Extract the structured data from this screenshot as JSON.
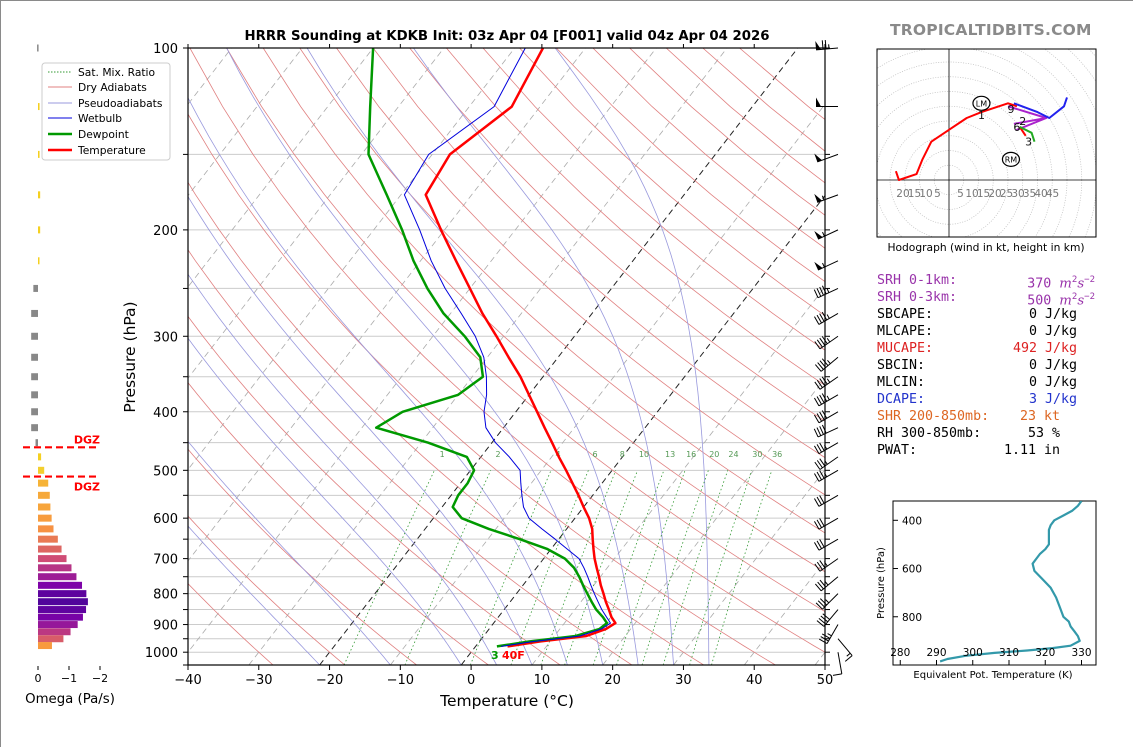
{
  "brand": "TROPICALTIDBITS.COM",
  "chart_data": [
    {
      "type": "line",
      "name": "skew-t",
      "title": "HRRR Sounding at KDKB Init: 03z Apr 04 [F001] valid 04z Apr 04 2026",
      "xlabel": "Temperature (°C)",
      "ylabel": "Pressure (hPa)",
      "xlim": [
        -40,
        50
      ],
      "ylim": [
        1050,
        100
      ],
      "xticks": [
        "−40",
        "−30",
        "−20",
        "−10",
        "0",
        "10",
        "20",
        "30",
        "40",
        "50"
      ],
      "yticks": [
        "100",
        "200",
        "300",
        "400",
        "500",
        "600",
        "700",
        "800",
        "900",
        "1000"
      ],
      "legend": {
        "placement": "top-left",
        "entries": [
          "Sat. Mix. Ratio",
          "Dry Adiabats",
          "Pseudoadiabats",
          "Wetbulb",
          "Dewpoint",
          "Temperature"
        ]
      },
      "mixing_ratio_labels": [
        "1",
        "2",
        "4",
        "6",
        "8",
        "10",
        "13",
        "16",
        "20",
        "24",
        "30",
        "36"
      ],
      "surface_labels": {
        "dewpoint": "3",
        "temperature": "40F"
      },
      "colors": {
        "temperature": "#ff0000",
        "dewpoint": "#009900",
        "wetbulb": "#0000dd",
        "dry": "#e08080",
        "moist": "#9999dd",
        "mix": "#339933"
      },
      "series": [
        {
          "name": "Temperature",
          "p": [
            978,
            960,
            940,
            915,
            895,
            875,
            850,
            825,
            800,
            775,
            750,
            725,
            700,
            675,
            650,
            625,
            600,
            575,
            550,
            525,
            500,
            475,
            450,
            425,
            400,
            375,
            350,
            325,
            300,
            275,
            250,
            225,
            200,
            175,
            150,
            125,
            100
          ],
          "t": [
            4.5,
            8.5,
            14.5,
            16.5,
            17.2,
            16.0,
            14.8,
            13.5,
            12.3,
            11.0,
            9.8,
            8.5,
            7.2,
            6.0,
            4.8,
            3.6,
            2.0,
            0.0,
            -2.0,
            -4.2,
            -6.5,
            -9.0,
            -11.5,
            -14.2,
            -17.0,
            -20.0,
            -23.2,
            -27.0,
            -31.0,
            -35.5,
            -40.0,
            -45.0,
            -50.5,
            -56.5,
            -57.5,
            -54.0,
            -56.0
          ]
        },
        {
          "name": "Dewpoint",
          "p": [
            978,
            960,
            940,
            915,
            895,
            875,
            850,
            825,
            800,
            775,
            750,
            725,
            700,
            675,
            650,
            625,
            600,
            575,
            550,
            525,
            500,
            475,
            450,
            425,
            400,
            375,
            350,
            325,
            300,
            275,
            250,
            225,
            200,
            175,
            150,
            125,
            100
          ],
          "t": [
            3.0,
            7.0,
            13.0,
            15.6,
            16.0,
            14.8,
            13.0,
            11.5,
            10.0,
            8.5,
            7.0,
            5.3,
            3.0,
            -0.5,
            -5.5,
            -11.0,
            -16.0,
            -18.5,
            -19.0,
            -19.0,
            -19.5,
            -22.0,
            -29.0,
            -38.0,
            -36.0,
            -30.0,
            -28.5,
            -31.0,
            -35.5,
            -41.0,
            -46.0,
            -51.0,
            -56.0,
            -62.0,
            -69.0,
            -74.0,
            -80.0
          ]
        },
        {
          "name": "Wetbulb",
          "p": [
            978,
            960,
            940,
            915,
            895,
            875,
            850,
            825,
            800,
            775,
            750,
            725,
            700,
            675,
            650,
            625,
            600,
            575,
            550,
            525,
            500,
            475,
            450,
            425,
            400,
            375,
            350,
            325,
            300,
            275,
            250,
            225,
            200,
            175,
            150,
            125,
            100
          ],
          "t": [
            3.6,
            7.6,
            13.6,
            15.9,
            16.5,
            15.3,
            13.8,
            12.4,
            11.0,
            9.6,
            8.2,
            6.7,
            5.0,
            2.3,
            -0.5,
            -3.5,
            -6.5,
            -8.5,
            -10.0,
            -11.5,
            -13.0,
            -16.0,
            -19.5,
            -22.5,
            -24.5,
            -26.0,
            -28.0,
            -30.5,
            -34.0,
            -38.5,
            -43.5,
            -48.5,
            -53.5,
            -59.5,
            -60.5,
            -56.5,
            -58.5
          ]
        }
      ],
      "wind_barbs": {
        "p": [
          100,
          125,
          150,
          175,
          200,
          225,
          250,
          275,
          300,
          325,
          350,
          375,
          400,
          425,
          450,
          475,
          500,
          550,
          600,
          650,
          700,
          750,
          800,
          850,
          900,
          950,
          1000
        ],
        "speed_kt": [
          75,
          50,
          50,
          55,
          55,
          55,
          45,
          45,
          45,
          45,
          45,
          45,
          40,
          40,
          35,
          35,
          35,
          30,
          30,
          30,
          35,
          35,
          35,
          40,
          35,
          15,
          10
        ],
        "direction_deg": [
          265,
          270,
          250,
          250,
          245,
          245,
          245,
          240,
          235,
          230,
          235,
          240,
          240,
          245,
          240,
          235,
          240,
          240,
          240,
          240,
          235,
          230,
          225,
          220,
          210,
          140,
          170
        ]
      }
    },
    {
      "type": "bar",
      "name": "omega",
      "xlabel": "Omega (Pa/s)",
      "xticks": [
        "0",
        "−1",
        "−2"
      ],
      "dgz_label": "DGZ",
      "dgz_p": [
        458,
        512
      ],
      "p": [
        100,
        125,
        150,
        175,
        200,
        225,
        250,
        275,
        300,
        325,
        350,
        375,
        400,
        425,
        450,
        475,
        500,
        525,
        550,
        575,
        600,
        625,
        650,
        675,
        700,
        725,
        750,
        775,
        800,
        825,
        850,
        875,
        900,
        925,
        950,
        975
      ],
      "omega": [
        0.03,
        -0.05,
        -0.05,
        -0.07,
        -0.07,
        -0.01,
        0.15,
        0.22,
        0.22,
        0.22,
        0.22,
        0.22,
        0.22,
        0.22,
        0.08,
        -0.1,
        -0.2,
        -0.33,
        -0.38,
        -0.4,
        -0.44,
        -0.5,
        -0.64,
        -0.76,
        -0.92,
        -1.08,
        -1.24,
        -1.42,
        -1.56,
        -1.61,
        -1.55,
        -1.45,
        -1.28,
        -1.05,
        -0.82,
        -0.45
      ],
      "bar_colors_note": "gray for positive, plasma colormap by magnitude for negative"
    },
    {
      "type": "line",
      "name": "hodograph",
      "xlabel": "Hodograph (wind in kt, height in km)",
      "ring_labels": [
        "20",
        "15",
        "10",
        "5",
        "5",
        "10",
        "15",
        "20",
        "25",
        "30",
        "35",
        "40",
        "45"
      ],
      "storm_motion_labels": [
        "LM",
        "RM"
      ],
      "lm": [
        5.5,
        13
      ],
      "rm": [
        10.5,
        3.5
      ],
      "height_labels": [
        {
          "text": "1",
          "u": 5.5,
          "v": 11
        },
        {
          "text": "2",
          "u": 12.5,
          "v": 10
        },
        {
          "text": "3",
          "u": 13.5,
          "v": 6.5
        },
        {
          "text": "6",
          "u": 11.5,
          "v": 9
        },
        {
          "text": "9",
          "u": 10.5,
          "v": 12
        }
      ],
      "segments": [
        {
          "color": "#ff0000",
          "points": [
            [
              -9,
              1.5
            ],
            [
              -8.5,
              0
            ],
            [
              -5.5,
              1
            ],
            [
              -4.5,
              3.5
            ],
            [
              -3,
              6.5
            ],
            [
              0,
              8.5
            ],
            [
              3,
              10.5
            ],
            [
              5.5,
              11.5
            ],
            [
              10,
              13
            ],
            [
              11.5,
              12.5
            ]
          ]
        },
        {
          "color": "#aa22cc",
          "points": [
            [
              10,
              12.5
            ],
            [
              16.5,
              10.5
            ],
            [
              11.5,
              8.5
            ],
            [
              16.5,
              10.5
            ],
            [
              11,
              9.5
            ]
          ]
        },
        {
          "color": "#ff0000",
          "points": [
            [
              12,
              9
            ],
            [
              13,
              7.5
            ]
          ]
        },
        {
          "color": "#22aa22",
          "points": [
            [
              12,
              9
            ],
            [
              14,
              8
            ],
            [
              14.5,
              6.5
            ]
          ]
        },
        {
          "color": "#2222ee",
          "points": [
            [
              11,
              13
            ],
            [
              15,
              11.5
            ],
            [
              17,
              10.5
            ],
            [
              19.5,
              12.5
            ],
            [
              20,
              14
            ]
          ]
        }
      ]
    },
    {
      "type": "line",
      "name": "theta-e",
      "xlabel": "Equivalent Pot. Temperature (K)",
      "ylabel": "Pressure (hPa)",
      "xticks": [
        "280",
        "290",
        "300",
        "310",
        "320",
        "330"
      ],
      "yticks": [
        "400",
        "600",
        "800"
      ],
      "xlim": [
        278,
        334
      ],
      "ylim": [
        1000,
        320
      ],
      "p": [
        985,
        975,
        962,
        950,
        940,
        930,
        920,
        900,
        880,
        860,
        840,
        820,
        800,
        760,
        720,
        680,
        640,
        610,
        580,
        560,
        540,
        520,
        500,
        480,
        460,
        440,
        420,
        400,
        380,
        360,
        340,
        320
      ],
      "theta_e": [
        291,
        293,
        298,
        306,
        315,
        322,
        327,
        329.5,
        329,
        328,
        327,
        326.5,
        325,
        324,
        323,
        321.5,
        319,
        317,
        316.5,
        317.5,
        318.5,
        320,
        321,
        321,
        321,
        321,
        321.5,
        322.5,
        325,
        327.5,
        329,
        330
      ],
      "color": "#3399aa"
    }
  ],
  "stats": [
    {
      "label": "SRH 0-1km:",
      "value": "370",
      "unit": "m",
      "exp1": "2",
      "unit2": "s",
      "exp2": "−2",
      "color": "#9933aa"
    },
    {
      "label": "SRH 0-3km:",
      "value": "500",
      "unit": "m",
      "exp1": "2",
      "unit2": "s",
      "exp2": "−2",
      "color": "#9933aa"
    },
    {
      "label": "SBCAPE:",
      "value": "0 J/kg",
      "color": "#000000"
    },
    {
      "label": "MLCAPE:",
      "value": "0 J/kg",
      "color": "#000000"
    },
    {
      "label": "MUCAPE:",
      "value": "492 J/kg",
      "color": "#dd2222"
    },
    {
      "label": "SBCIN:",
      "value": "0 J/kg",
      "color": "#000000"
    },
    {
      "label": "MLCIN:",
      "value": "0 J/kg",
      "color": "#000000"
    },
    {
      "label": "DCAPE:",
      "value": "3 J/kg",
      "color": "#2233cc"
    },
    {
      "label": "SHR 200-850mb:",
      "value": "23 kt",
      "color": "#dd6622"
    },
    {
      "label": "RH 300-850mb:",
      "value": "53 %",
      "color": "#000000"
    },
    {
      "label": "PWAT:",
      "value": "1.11 in",
      "color": "#000000"
    }
  ]
}
